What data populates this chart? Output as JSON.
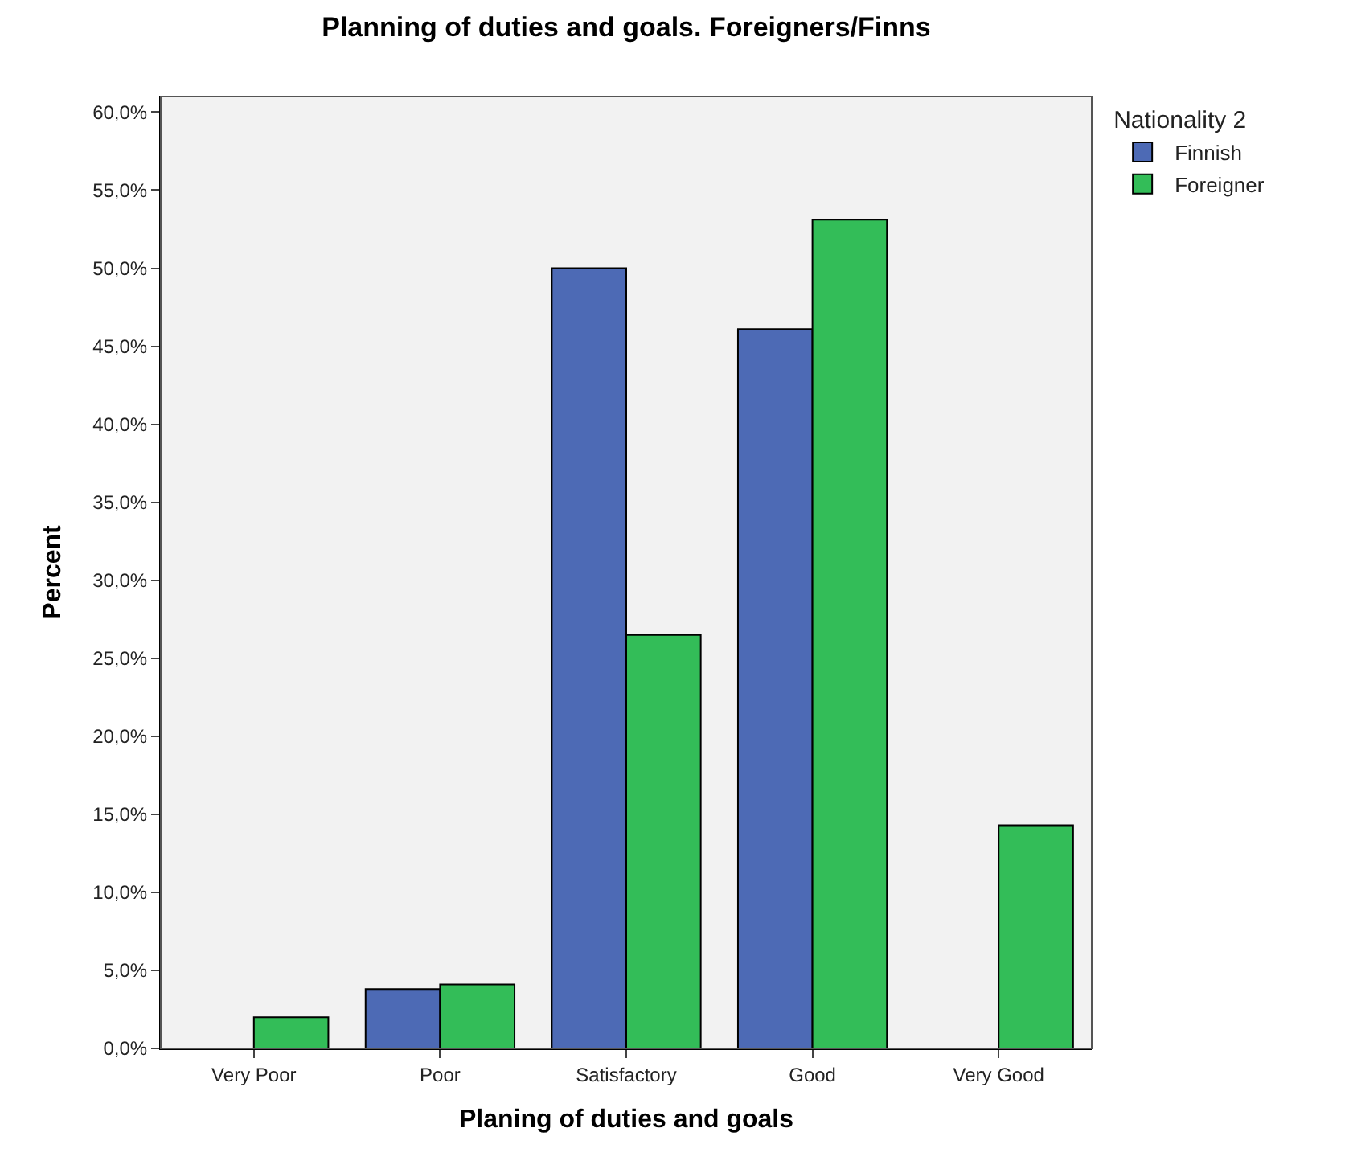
{
  "chart_data": {
    "type": "bar",
    "title": "Planning of duties and goals. Foreigners/Finns",
    "xlabel": "Planing of duties and goals",
    "ylabel": "Percent",
    "legend_title": "Nationality 2",
    "categories": [
      "Very Poor",
      "Poor",
      "Satisfactory",
      "Good",
      "Very Good"
    ],
    "series": [
      {
        "name": "Finnish",
        "color": "#4d6ab5",
        "values": [
          null,
          3.8,
          50.0,
          46.1,
          null
        ]
      },
      {
        "name": "Foreigner",
        "color": "#33bd58",
        "values": [
          2.0,
          4.1,
          26.5,
          53.1,
          14.3
        ]
      }
    ],
    "ylim": [
      0,
      61
    ],
    "yticks": [
      {
        "value": 0,
        "label": "0,0%"
      },
      {
        "value": 5,
        "label": "5,0%"
      },
      {
        "value": 10,
        "label": "10,0%"
      },
      {
        "value": 15,
        "label": "15,0%"
      },
      {
        "value": 20,
        "label": "20,0%"
      },
      {
        "value": 25,
        "label": "25,0%"
      },
      {
        "value": 30,
        "label": "30,0%"
      },
      {
        "value": 35,
        "label": "35,0%"
      },
      {
        "value": 40,
        "label": "40,0%"
      },
      {
        "value": 45,
        "label": "45,0%"
      },
      {
        "value": 50,
        "label": "50,0%"
      },
      {
        "value": 55,
        "label": "55,0%"
      },
      {
        "value": 60,
        "label": "60,0%"
      }
    ],
    "grid": false,
    "legend": "top right"
  }
}
